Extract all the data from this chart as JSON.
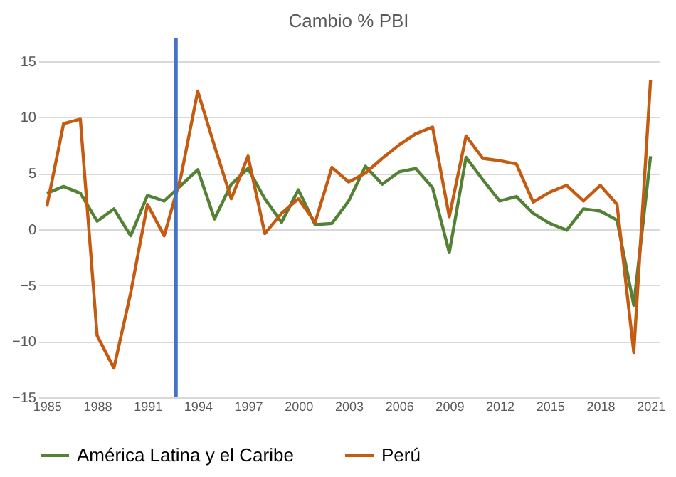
{
  "chart_data": {
    "type": "line",
    "title": "Cambio % PBI",
    "x": [
      1985,
      1986,
      1987,
      1988,
      1989,
      1990,
      1991,
      1992,
      1993,
      1994,
      1995,
      1996,
      1997,
      1998,
      1999,
      2000,
      2001,
      2002,
      2003,
      2004,
      2005,
      2006,
      2007,
      2008,
      2009,
      2010,
      2011,
      2012,
      2013,
      2014,
      2015,
      2016,
      2017,
      2018,
      2019,
      2020,
      2021
    ],
    "series": [
      {
        "name": "América Latina y el Caribe",
        "color": "#548235",
        "values": [
          3.2,
          3.8,
          3.2,
          0.7,
          1.8,
          -0.6,
          3.0,
          2.5,
          3.9,
          5.3,
          0.9,
          4.0,
          5.4,
          2.7,
          0.6,
          3.5,
          0.4,
          0.5,
          2.5,
          5.6,
          4.0,
          5.1,
          5.4,
          3.7,
          -2.1,
          6.4,
          4.4,
          2.5,
          2.9,
          1.4,
          0.5,
          -0.1,
          1.8,
          1.6,
          0.8,
          -6.8,
          6.5
        ]
      },
      {
        "name": "Perú",
        "color": "#c55a11",
        "values": [
          2.0,
          9.4,
          9.8,
          -9.5,
          -12.4,
          -5.7,
          2.2,
          -0.6,
          4.7,
          12.3,
          7.4,
          2.7,
          6.5,
          -0.4,
          1.4,
          2.7,
          0.6,
          5.5,
          4.2,
          5.0,
          6.3,
          7.5,
          8.5,
          9.1,
          1.1,
          8.3,
          6.3,
          6.1,
          5.8,
          2.4,
          3.3,
          3.9,
          2.5,
          3.9,
          2.2,
          -11.0,
          13.3
        ]
      }
    ],
    "xlim": [
      1984.5,
      2021.5
    ],
    "xticks": [
      1985,
      1988,
      1991,
      1994,
      1997,
      2000,
      2003,
      2006,
      2009,
      2012,
      2015,
      2018,
      2021
    ],
    "ylim": [
      -15,
      17
    ],
    "yticks": [
      -15,
      -10,
      -5,
      0,
      5,
      10,
      15
    ],
    "ref_lines": [
      {
        "axis": "x",
        "value": 1992.7,
        "color": "#4472c4"
      }
    ],
    "grid": "y",
    "legend": "bottom",
    "line_style": "solid",
    "marker": "none"
  }
}
